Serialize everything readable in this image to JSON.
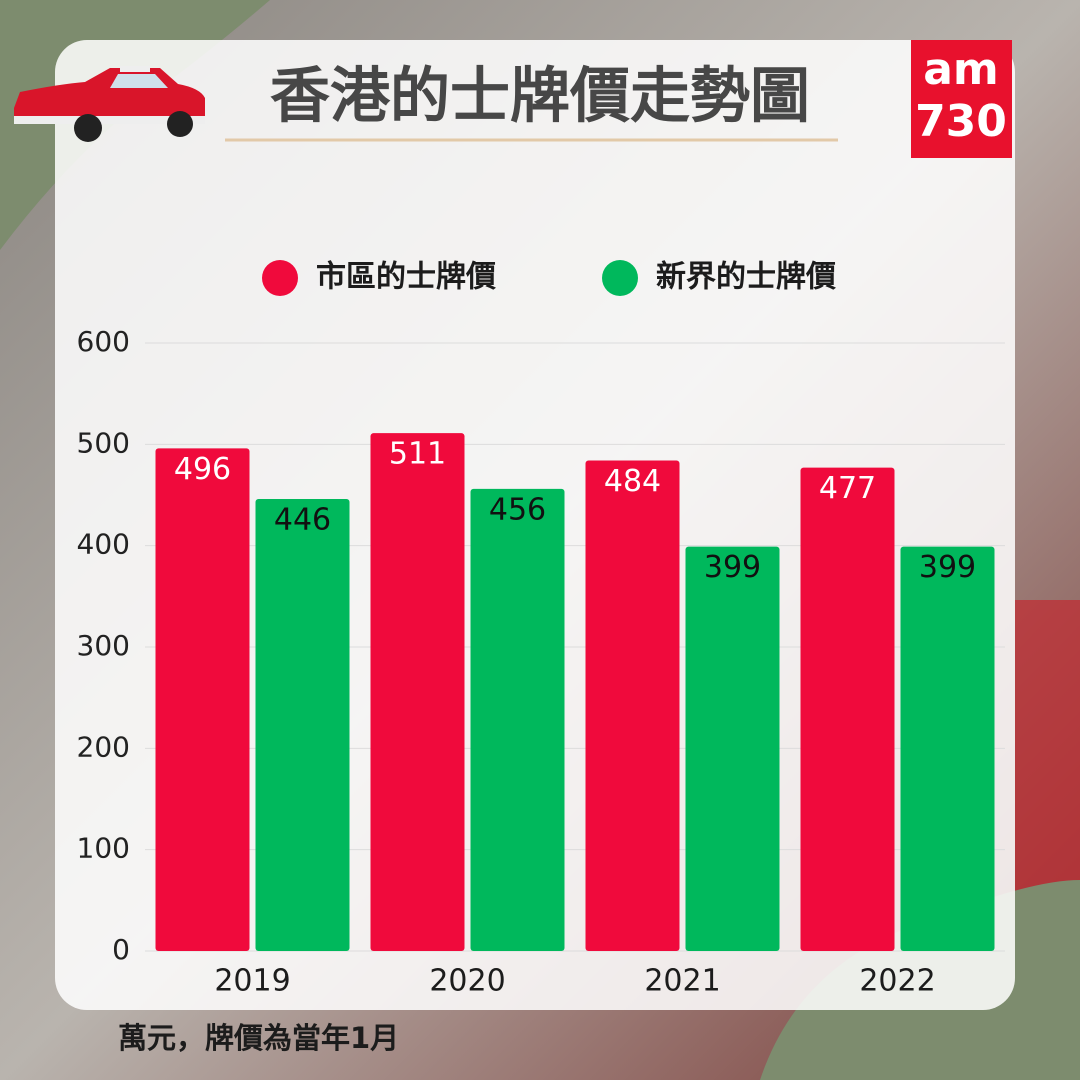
{
  "chart_data": {
    "type": "bar",
    "title": "香港的士牌價走勢圖",
    "logo": [
      "am",
      "730"
    ],
    "categories": [
      "2019",
      "2020",
      "2021",
      "2022"
    ],
    "series": [
      {
        "name": "市區的士牌價",
        "color": "#f00a3c",
        "values": [
          496,
          511,
          484,
          477
        ]
      },
      {
        "name": "新界的士牌價",
        "color": "#00b85c",
        "values": [
          446,
          456,
          399,
          399
        ]
      }
    ],
    "ylim": [
      0,
      600
    ],
    "yticks": [
      0,
      100,
      200,
      300,
      400,
      500,
      600
    ],
    "grid": true,
    "note": "萬元，牌價為當年1月"
  }
}
